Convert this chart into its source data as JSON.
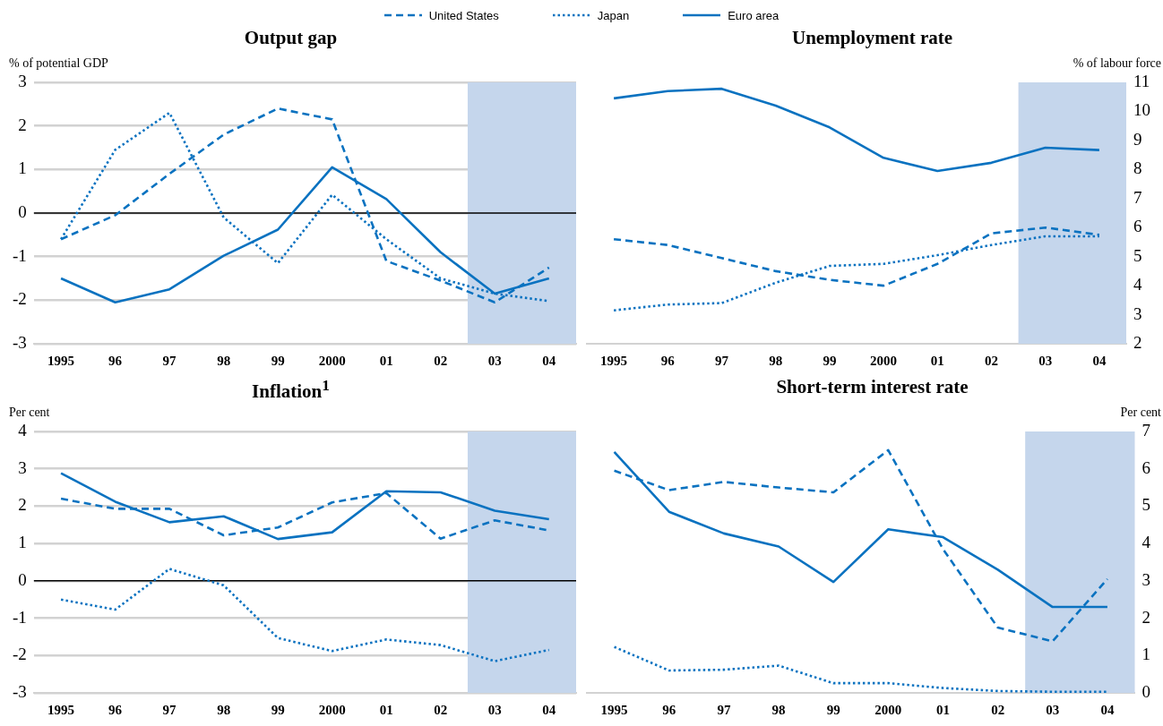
{
  "chart_data": [
    {
      "type": "line",
      "title": "Output gap",
      "ylabel": "% of potential GDP",
      "categories": [
        "1995",
        "96",
        "97",
        "98",
        "99",
        "2000",
        "01",
        "02",
        "03",
        "04"
      ],
      "series": [
        {
          "name": "United States",
          "color": "#0a72c0",
          "line_style": "dashed",
          "values": [
            -0.6,
            -0.05,
            0.9,
            1.8,
            2.4,
            2.15,
            -1.1,
            -1.55,
            -2.05,
            -1.25
          ]
        },
        {
          "name": "Japan",
          "color": "#0a72c0",
          "line_style": "dotted",
          "values": [
            -0.6,
            1.45,
            2.3,
            -0.1,
            -1.15,
            0.42,
            -0.6,
            -1.5,
            -1.85,
            -2.02
          ]
        },
        {
          "name": "Euro area",
          "color": "#0a72c0",
          "line_style": "solid",
          "values": [
            -1.5,
            -2.05,
            -1.75,
            -0.98,
            -0.38,
            1.05,
            0.32,
            -0.9,
            -1.85,
            -1.5
          ]
        }
      ],
      "ylim": [
        -3,
        3
      ],
      "yticks": [
        -3,
        -2,
        -1,
        0,
        1,
        2,
        3
      ],
      "grid": "y",
      "legend": "top",
      "marker": "none",
      "ref_lines": [
        {
          "axis": "y",
          "value": 0,
          "color": "#000000"
        }
      ],
      "bands": [
        {
          "axis": "x",
          "from": "03",
          "to": "04",
          "color": "#c5d6ec"
        }
      ]
    },
    {
      "type": "line",
      "title": "Unemployment rate",
      "y2label": "% of labour force",
      "categories": [
        "1995",
        "96",
        "97",
        "98",
        "99",
        "2000",
        "01",
        "02",
        "03",
        "04"
      ],
      "series": [
        {
          "color": "#0a72c0",
          "line_style": "dashed",
          "axis": "y2",
          "values": [
            5.6,
            5.4,
            4.95,
            4.5,
            4.2,
            4.0,
            4.75,
            5.8,
            6.0,
            5.75
          ]
        },
        {
          "color": "#0a72c0",
          "line_style": "dotted",
          "axis": "y2",
          "values": [
            3.15,
            3.35,
            3.4,
            4.1,
            4.68,
            4.75,
            5.05,
            5.4,
            5.7,
            5.7
          ]
        },
        {
          "color": "#0a72c0",
          "line_style": "solid",
          "axis": "y2",
          "values": [
            10.45,
            10.7,
            10.78,
            10.2,
            9.45,
            8.4,
            7.95,
            8.23,
            8.75,
            8.67
          ]
        }
      ],
      "y2lim": [
        2,
        11
      ],
      "y2ticks": [
        2,
        3,
        4,
        5,
        6,
        7,
        8,
        9,
        10,
        11
      ],
      "grid": "y",
      "marker": "none",
      "bands": [
        {
          "axis": "x",
          "from": "03",
          "to": "04",
          "color": "#c5d6ec"
        }
      ]
    },
    {
      "type": "line",
      "title": "Inflation$^{1}$",
      "ylabel": "Per cent",
      "categories": [
        "1995",
        "96",
        "97",
        "98",
        "99",
        "2000",
        "01",
        "02",
        "03",
        "04"
      ],
      "series": [
        {
          "color": "#0a72c0",
          "line_style": "dashed",
          "values": [
            2.2,
            1.93,
            1.93,
            1.22,
            1.43,
            2.1,
            2.35,
            1.13,
            1.62,
            1.35
          ]
        },
        {
          "color": "#0a72c0",
          "line_style": "dotted",
          "values": [
            -0.5,
            -0.77,
            0.32,
            -0.12,
            -1.53,
            -1.88,
            -1.57,
            -1.72,
            -2.15,
            -1.85
          ]
        },
        {
          "color": "#0a72c0",
          "line_style": "solid",
          "values": [
            2.88,
            2.12,
            1.57,
            1.73,
            1.12,
            1.3,
            2.4,
            2.37,
            1.88,
            1.65
          ]
        }
      ],
      "ylim": [
        -3,
        4
      ],
      "yticks": [
        -3,
        -2,
        -1,
        0,
        1,
        2,
        3,
        4
      ],
      "grid": "y",
      "marker": "none",
      "ref_lines": [
        {
          "axis": "y",
          "value": 0,
          "color": "#000000"
        }
      ],
      "bands": [
        {
          "axis": "x",
          "from": "03",
          "to": "04",
          "color": "#c5d6ec"
        }
      ]
    },
    {
      "type": "line",
      "title": "Short-term interest rate",
      "y2label": "Per cent",
      "categories": [
        "1995",
        "96",
        "97",
        "98",
        "99",
        "2000",
        "01",
        "02",
        "03",
        "04"
      ],
      "series": [
        {
          "color": "#0a72c0",
          "line_style": "dashed",
          "axis": "y2",
          "values": [
            5.95,
            5.43,
            5.65,
            5.5,
            5.37,
            6.5,
            3.85,
            1.75,
            1.38,
            3.05
          ]
        },
        {
          "color": "#0a72c0",
          "line_style": "dotted",
          "axis": "y2",
          "values": [
            1.23,
            0.6,
            0.62,
            0.73,
            0.26,
            0.26,
            0.13,
            0.05,
            0.03,
            0.03
          ]
        },
        {
          "color": "#0a72c0",
          "line_style": "solid",
          "axis": "y2",
          "values": [
            6.45,
            4.85,
            4.27,
            3.92,
            2.97,
            4.38,
            4.17,
            3.3,
            2.3,
            2.3
          ]
        }
      ],
      "y2lim": [
        0,
        7
      ],
      "y2ticks": [
        0,
        1,
        2,
        3,
        4,
        5,
        6,
        7
      ],
      "grid": "y",
      "marker": "none",
      "bands": [
        {
          "axis": "x",
          "from": "03",
          "to": "04",
          "color": "#c5d6ec"
        }
      ]
    }
  ]
}
